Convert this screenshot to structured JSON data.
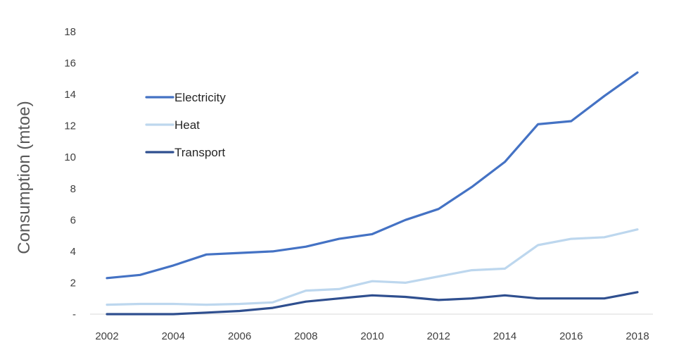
{
  "chart_data": {
    "type": "line",
    "title": "",
    "xlabel": "",
    "ylabel": "Consumption (mtoe)",
    "x": [
      2002,
      2003,
      2004,
      2005,
      2006,
      2007,
      2008,
      2009,
      2010,
      2011,
      2012,
      2013,
      2014,
      2015,
      2016,
      2017,
      2018
    ],
    "x_tick_labels": [
      "2002",
      "2004",
      "2006",
      "2008",
      "2010",
      "2012",
      "2014",
      "2016",
      "2018"
    ],
    "x_tick_values": [
      2002,
      2004,
      2006,
      2008,
      2010,
      2012,
      2014,
      2016,
      2018
    ],
    "y_tick_labels": [
      "-",
      "2",
      "4",
      "6",
      "8",
      "10",
      "12",
      "14",
      "16",
      "18"
    ],
    "y_tick_values": [
      0,
      2,
      4,
      6,
      8,
      10,
      12,
      14,
      16,
      18
    ],
    "xlim": [
      2002,
      2018
    ],
    "ylim": [
      0,
      18
    ],
    "grid": false,
    "legend_position": "upper-left",
    "series": [
      {
        "name": "Electricity",
        "color": "#4472C4",
        "values": [
          2.3,
          2.5,
          3.1,
          3.8,
          3.9,
          4.0,
          4.3,
          4.8,
          5.1,
          6.0,
          6.7,
          8.1,
          9.7,
          12.1,
          12.3,
          13.9,
          15.4
        ]
      },
      {
        "name": "Heat",
        "color": "#BDD7EE",
        "values": [
          0.6,
          0.65,
          0.65,
          0.6,
          0.65,
          0.75,
          1.5,
          1.6,
          2.1,
          2.0,
          2.4,
          2.8,
          2.9,
          4.4,
          4.8,
          4.9,
          5.4
        ]
      },
      {
        "name": "Transport",
        "color": "#2F4F8F",
        "values": [
          0.0,
          0.0,
          0.0,
          0.1,
          0.2,
          0.4,
          0.8,
          1.0,
          1.2,
          1.1,
          0.9,
          1.0,
          1.2,
          1.0,
          1.0,
          1.0,
          1.4
        ]
      }
    ]
  }
}
